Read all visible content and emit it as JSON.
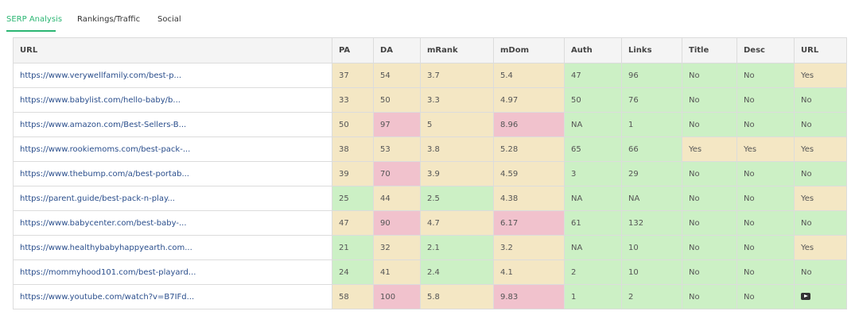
{
  "tabs": [
    {
      "label": "SERP Analysis",
      "active": true
    },
    {
      "label": "Rankings/Traffic",
      "active": false
    },
    {
      "label": "Social",
      "active": false
    }
  ],
  "columns": [
    "URL",
    "PA",
    "DA",
    "mRank",
    "mDom",
    "Auth",
    "Links",
    "Title",
    "Desc",
    "URL"
  ],
  "colors": {
    "green": "#ccf0c5",
    "yellow": "#f4e7c4",
    "red": "#f1c2cd",
    "accent": "#2bb673",
    "link": "#2a4e8c"
  },
  "rows": [
    {
      "url": "https://www.verywellfamily.com/best-p...",
      "pa": "37",
      "da": "54",
      "mrank": "3.7",
      "mdom": "5.4",
      "auth": "47",
      "links": "96",
      "title": "No",
      "desc": "No",
      "urlcol": "Yes",
      "c": {
        "pa": "y",
        "da": "y",
        "mrank": "y",
        "mdom": "y",
        "auth": "g",
        "links": "g",
        "title": "g",
        "desc": "g",
        "urlcol": "y"
      }
    },
    {
      "url": "https://www.babylist.com/hello-baby/b...",
      "pa": "33",
      "da": "50",
      "mrank": "3.3",
      "mdom": "4.97",
      "auth": "50",
      "links": "76",
      "title": "No",
      "desc": "No",
      "urlcol": "No",
      "c": {
        "pa": "y",
        "da": "y",
        "mrank": "y",
        "mdom": "y",
        "auth": "g",
        "links": "g",
        "title": "g",
        "desc": "g",
        "urlcol": "g"
      }
    },
    {
      "url": "https://www.amazon.com/Best-Sellers-B...",
      "pa": "50",
      "da": "97",
      "mrank": "5",
      "mdom": "8.96",
      "auth": "NA",
      "links": "1",
      "title": "No",
      "desc": "No",
      "urlcol": "No",
      "c": {
        "pa": "y",
        "da": "r",
        "mrank": "y",
        "mdom": "r",
        "auth": "g",
        "links": "g",
        "title": "g",
        "desc": "g",
        "urlcol": "g"
      }
    },
    {
      "url": "https://www.rookiemoms.com/best-pack-...",
      "pa": "38",
      "da": "53",
      "mrank": "3.8",
      "mdom": "5.28",
      "auth": "65",
      "links": "66",
      "title": "Yes",
      "desc": "Yes",
      "urlcol": "Yes",
      "c": {
        "pa": "y",
        "da": "y",
        "mrank": "y",
        "mdom": "y",
        "auth": "g",
        "links": "g",
        "title": "y",
        "desc": "y",
        "urlcol": "y"
      }
    },
    {
      "url": "https://www.thebump.com/a/best-portab...",
      "pa": "39",
      "da": "70",
      "mrank": "3.9",
      "mdom": "4.59",
      "auth": "3",
      "links": "29",
      "title": "No",
      "desc": "No",
      "urlcol": "No",
      "c": {
        "pa": "y",
        "da": "r",
        "mrank": "y",
        "mdom": "y",
        "auth": "g",
        "links": "g",
        "title": "g",
        "desc": "g",
        "urlcol": "g"
      }
    },
    {
      "url": "https://parent.guide/best-pack-n-play...",
      "pa": "25",
      "da": "44",
      "mrank": "2.5",
      "mdom": "4.38",
      "auth": "NA",
      "links": "NA",
      "title": "No",
      "desc": "No",
      "urlcol": "Yes",
      "c": {
        "pa": "g",
        "da": "y",
        "mrank": "g",
        "mdom": "y",
        "auth": "g",
        "links": "g",
        "title": "g",
        "desc": "g",
        "urlcol": "y"
      }
    },
    {
      "url": "https://www.babycenter.com/best-baby-...",
      "pa": "47",
      "da": "90",
      "mrank": "4.7",
      "mdom": "6.17",
      "auth": "61",
      "links": "132",
      "title": "No",
      "desc": "No",
      "urlcol": "No",
      "c": {
        "pa": "y",
        "da": "r",
        "mrank": "y",
        "mdom": "r",
        "auth": "g",
        "links": "g",
        "title": "g",
        "desc": "g",
        "urlcol": "g"
      }
    },
    {
      "url": "https://www.healthybabyhappyearth.com...",
      "pa": "21",
      "da": "32",
      "mrank": "2.1",
      "mdom": "3.2",
      "auth": "NA",
      "links": "10",
      "title": "No",
      "desc": "No",
      "urlcol": "Yes",
      "c": {
        "pa": "g",
        "da": "y",
        "mrank": "g",
        "mdom": "y",
        "auth": "g",
        "links": "g",
        "title": "g",
        "desc": "g",
        "urlcol": "y"
      }
    },
    {
      "url": "https://mommyhood101.com/best-playard...",
      "pa": "24",
      "da": "41",
      "mrank": "2.4",
      "mdom": "4.1",
      "auth": "2",
      "links": "10",
      "title": "No",
      "desc": "No",
      "urlcol": "No",
      "c": {
        "pa": "g",
        "da": "y",
        "mrank": "g",
        "mdom": "y",
        "auth": "g",
        "links": "g",
        "title": "g",
        "desc": "g",
        "urlcol": "g"
      }
    },
    {
      "url": "https://www.youtube.com/watch?v=B7IFd...",
      "pa": "58",
      "da": "100",
      "mrank": "5.8",
      "mdom": "9.83",
      "auth": "1",
      "links": "2",
      "title": "No",
      "desc": "No",
      "urlcol": "",
      "url_icon": "youtube-icon",
      "c": {
        "pa": "y",
        "da": "r",
        "mrank": "y",
        "mdom": "r",
        "auth": "g",
        "links": "g",
        "title": "g",
        "desc": "g",
        "urlcol": "g"
      }
    }
  ]
}
